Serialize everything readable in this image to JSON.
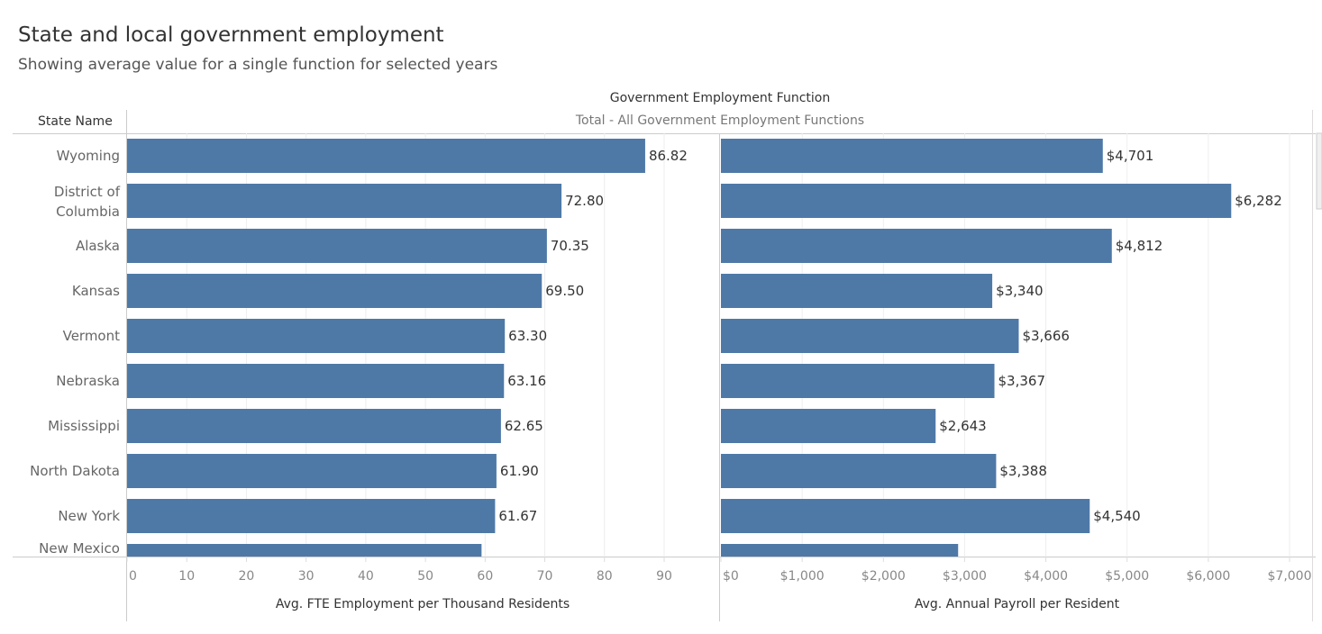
{
  "title": "State and local government employment",
  "subtitle": "Showing average value for a single function for selected years",
  "column_header": "Government Employment Function",
  "column_value": "Total - All Government Employment Functions",
  "row_header": "State Name",
  "colors": {
    "bar": "#4e79a7"
  },
  "chart_data": [
    {
      "type": "bar",
      "orientation": "horizontal",
      "xlabel": "Avg. FTE Employment per Thousand Residents",
      "xlim": [
        0,
        97
      ],
      "ticks": [
        "0",
        "10",
        "20",
        "30",
        "40",
        "50",
        "60",
        "70",
        "80",
        "90"
      ],
      "tick_values": [
        0,
        10,
        20,
        30,
        40,
        50,
        60,
        70,
        80,
        90
      ],
      "grid": true,
      "categories": [
        "Wyoming",
        "District of Columbia",
        "Alaska",
        "Kansas",
        "Vermont",
        "Nebraska",
        "Mississippi",
        "North Dakota",
        "New York",
        "New Mexico"
      ],
      "values": [
        86.82,
        72.8,
        70.35,
        69.5,
        63.3,
        63.16,
        62.65,
        61.9,
        61.67,
        59.4
      ],
      "labels": [
        "86.82",
        "72.80",
        "70.35",
        "69.50",
        "63.30",
        "63.16",
        "62.65",
        "61.90",
        "61.67",
        ""
      ]
    },
    {
      "type": "bar",
      "orientation": "horizontal",
      "xlabel": "Avg. Annual Payroll per Resident",
      "xlim": [
        0,
        7300
      ],
      "ticks": [
        "$0",
        "$1,000",
        "$2,000",
        "$3,000",
        "$4,000",
        "$5,000",
        "$6,000",
        "$7,000"
      ],
      "tick_values": [
        0,
        1000,
        2000,
        3000,
        4000,
        5000,
        6000,
        7000
      ],
      "grid": true,
      "categories": [
        "Wyoming",
        "District of Columbia",
        "Alaska",
        "Kansas",
        "Vermont",
        "Nebraska",
        "Mississippi",
        "North Dakota",
        "New York",
        "New Mexico"
      ],
      "values": [
        4701,
        6282,
        4812,
        3340,
        3666,
        3367,
        2643,
        3388,
        4540,
        2920
      ],
      "labels": [
        "$4,701",
        "$6,282",
        "$4,812",
        "$3,340",
        "$3,666",
        "$3,367",
        "$2,643",
        "$3,388",
        "$4,540",
        ""
      ]
    }
  ],
  "row_labels": [
    [
      "Wyoming"
    ],
    [
      "District of",
      "Columbia"
    ],
    [
      "Alaska"
    ],
    [
      "Kansas"
    ],
    [
      "Vermont"
    ],
    [
      "Nebraska"
    ],
    [
      "Mississippi"
    ],
    [
      "North Dakota"
    ],
    [
      "New York"
    ],
    [
      "New Mexico"
    ]
  ]
}
